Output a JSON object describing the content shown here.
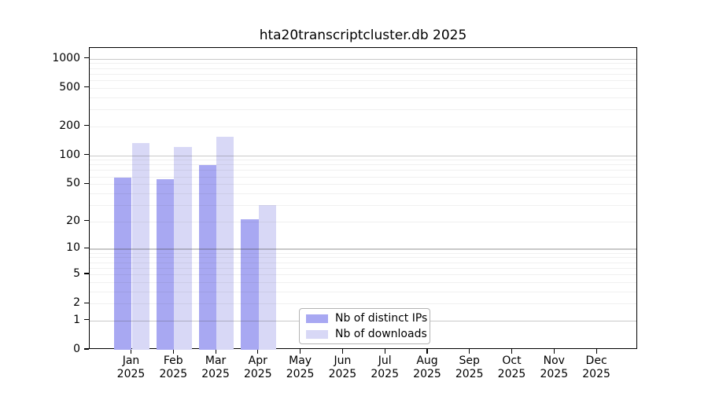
{
  "title": "hta20transcriptcluster.db 2025",
  "chart_data": {
    "type": "bar",
    "title": "hta20transcriptcluster.db 2025",
    "categories": [
      "Jan 2025",
      "Feb 2025",
      "Mar 2025",
      "Apr 2025",
      "May 2025",
      "Jun 2025",
      "Jul 2025",
      "Aug 2025",
      "Sep 2025",
      "Oct 2025",
      "Nov 2025",
      "Dec 2025"
    ],
    "months": [
      "Jan",
      "Feb",
      "Mar",
      "Apr",
      "May",
      "Jun",
      "Jul",
      "Aug",
      "Sep",
      "Oct",
      "Nov",
      "Dec"
    ],
    "year_label": "2025",
    "series": [
      {
        "name": "Nb of distinct IPs",
        "color": "#a8a8f2",
        "values": [
          58,
          56,
          79,
          21,
          0,
          0,
          0,
          0,
          0,
          0,
          0,
          0
        ]
      },
      {
        "name": "Nb of downloads",
        "color": "#d8d8f6",
        "values": [
          133,
          123,
          156,
          30,
          0,
          0,
          0,
          0,
          0,
          0,
          0,
          0
        ]
      }
    ],
    "y_scale": "log1p",
    "y_ticks": [
      0,
      1,
      2,
      5,
      10,
      20,
      50,
      100,
      200,
      500,
      1000
    ],
    "ylim": [
      0,
      1280
    ],
    "xlabel": "",
    "ylabel": "",
    "grid": true,
    "legend_position": "lower center",
    "colors": {
      "distinct_ips": "#a8a8f2",
      "downloads": "#d8d8f6",
      "major_grid": "#c4c4c4",
      "minor_grid": "#efefef",
      "spine": "#000000",
      "legend_border": "#b3b3b3"
    }
  }
}
